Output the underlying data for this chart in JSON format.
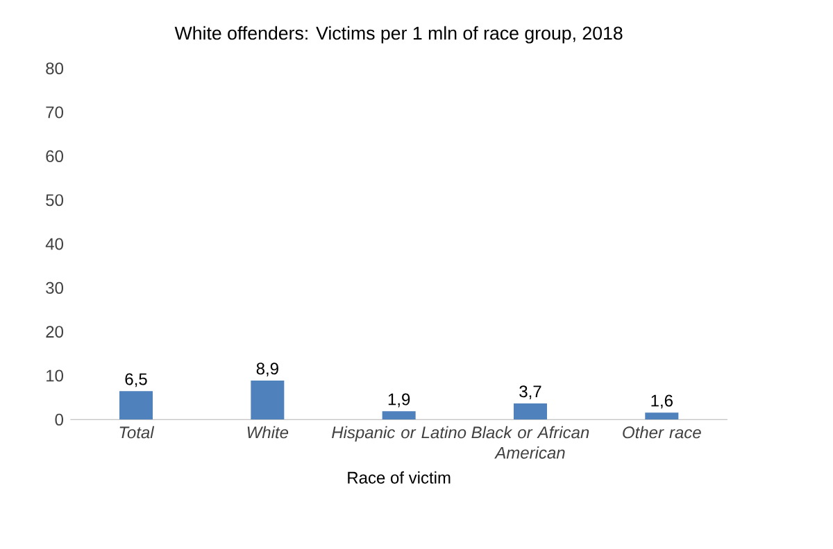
{
  "chart_data": {
    "type": "bar",
    "title": "White offenders: Victims per 1 mln of race group, 2018",
    "categories": [
      "Total",
      "White",
      "Hispanic or Latino",
      "Black or African American",
      "Other race"
    ],
    "values": [
      6.5,
      8.9,
      1.9,
      3.7,
      1.6
    ],
    "value_labels": [
      "6,5",
      "8,9",
      "1,9",
      "3,7",
      "1,6"
    ],
    "color": "#4f81bd",
    "xlabel": "Race of victim",
    "ylim": [
      0,
      80
    ],
    "yticks": [
      0,
      10,
      20,
      30,
      40,
      50,
      60,
      70,
      80
    ],
    "grid": false
  }
}
